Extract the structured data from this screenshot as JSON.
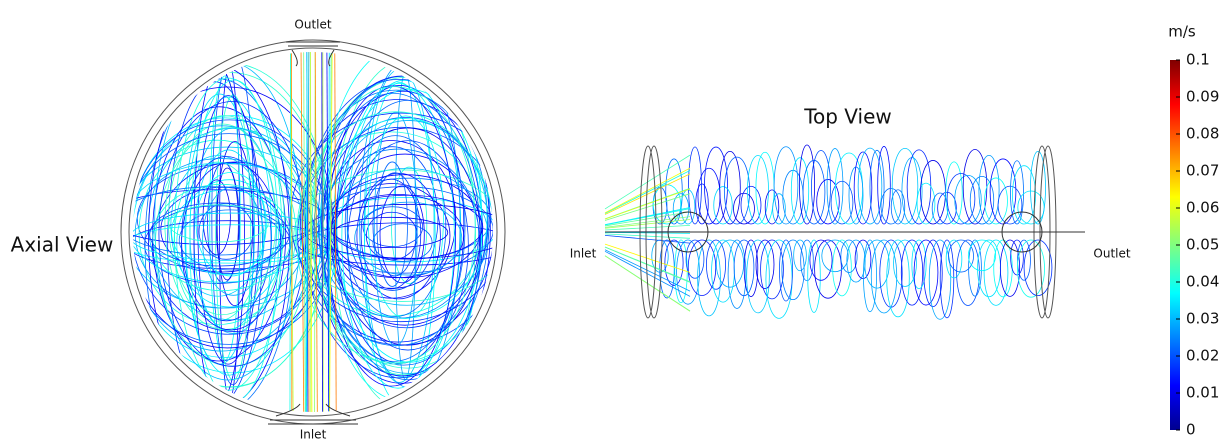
{
  "axial_view": {
    "title": "Axial View",
    "top_label": "Outlet",
    "bottom_label": "Inlet"
  },
  "top_view": {
    "title": "Top View",
    "left_label": "Inlet",
    "right_label": "Outlet"
  },
  "colorbar": {
    "unit": "m/s",
    "lim": [
      0,
      0.1
    ],
    "ticks": [
      0,
      0.01,
      0.02,
      0.03,
      0.04,
      0.05,
      0.06,
      0.07,
      0.08,
      0.09,
      0.1
    ]
  }
}
